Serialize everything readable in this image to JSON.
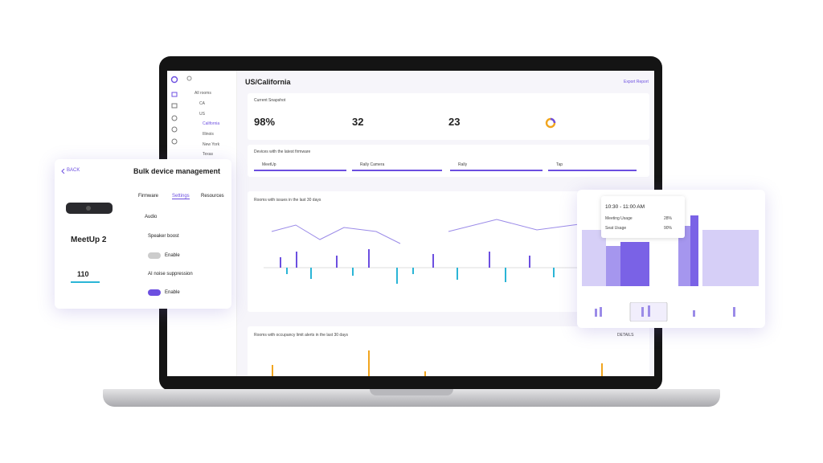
{
  "sidebar": {
    "tree": [
      "All rooms",
      "CA",
      "US",
      "California",
      "Illinois",
      "New York",
      "Texas"
    ]
  },
  "header": {
    "title": "US/California",
    "action": "Export Report"
  },
  "snapshot": {
    "title": "Current Snapshot",
    "stats": [
      "98%",
      "32",
      "23"
    ]
  },
  "firmware": {
    "title": "Devices with the latest firmware",
    "devices": [
      "MeetUp",
      "Rally Camera",
      "Rally",
      "Tap"
    ]
  },
  "issues_chart": {
    "title": "Rooms with issues in the last 30 days"
  },
  "occupancy_chart": {
    "title": "Rooms with occupancy limit alerts in the last 30 days",
    "action": "DETAILS"
  },
  "bulk_card": {
    "back": "BACK",
    "title": "Bulk device management",
    "tabs": [
      "Firmware",
      "Settings",
      "Resources"
    ],
    "device": "MeetUp 2",
    "count": "110",
    "section": "Audio",
    "settings": [
      {
        "label": "Speaker boost",
        "toggle": "Enable"
      },
      {
        "label": "AI noise suppression",
        "toggle": "Enable"
      }
    ]
  },
  "usage_card": {
    "time": "10:30 - 11:00 AM",
    "rows": [
      {
        "label": "Meeting Usage",
        "value": "28%"
      },
      {
        "label": "Seat Usage",
        "value": "90%"
      }
    ]
  }
}
